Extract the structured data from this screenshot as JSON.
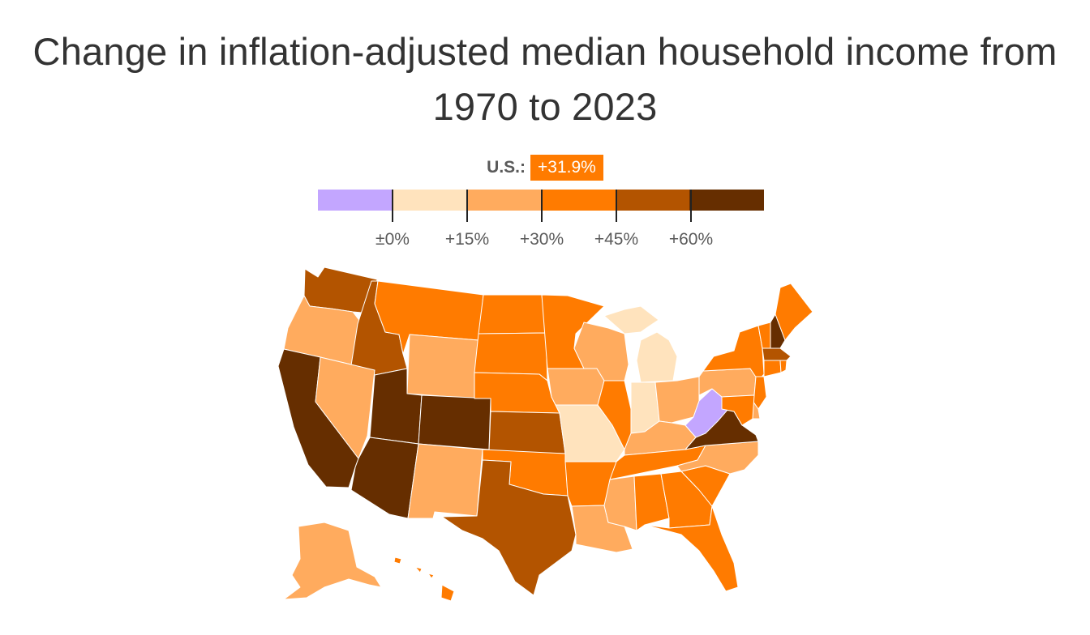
{
  "title": "Change in inflation-adjusted median household income from 1970 to 2023",
  "us": {
    "label": "U.S.:",
    "value": "+31.9%"
  },
  "legend": {
    "colors": [
      "#c3a6ff",
      "#ffe3bd",
      "#ffab5e",
      "#ff7b00",
      "#b35400",
      "#662e00"
    ],
    "ticks": [
      "±0%",
      "+15%",
      "+30%",
      "+45%",
      "+60%"
    ]
  },
  "states": {
    "WA": "#b35400",
    "OR": "#ffab5e",
    "CA": "#662e00",
    "ID": "#b35400",
    "NV": "#ffab5e",
    "MT": "#ff7b00",
    "WY": "#ffab5e",
    "UT": "#662e00",
    "AZ": "#662e00",
    "CO": "#662e00",
    "NM": "#ffab5e",
    "ND": "#ff7b00",
    "SD": "#ff7b00",
    "NE": "#ff7b00",
    "KS": "#b35400",
    "OK": "#ff7b00",
    "TX": "#b35400",
    "MN": "#ff7b00",
    "IA": "#ffab5e",
    "MO": "#ffe3bd",
    "AR": "#ff7b00",
    "LA": "#ffab5e",
    "WI": "#ffab5e",
    "IL": "#ff7b00",
    "MI": "#ffe3bd",
    "IN": "#ffe3bd",
    "OH": "#ffab5e",
    "KY": "#ffab5e",
    "TN": "#ff7b00",
    "MS": "#ffab5e",
    "AL": "#ff7b00",
    "GA": "#ff7b00",
    "FL": "#ff7b00",
    "SC": "#ff7b00",
    "NC": "#ffab5e",
    "VA": "#662e00",
    "WV": "#c3a6ff",
    "PA": "#ffab5e",
    "NY": "#ff7b00",
    "VT": "#ff7b00",
    "NH": "#662e00",
    "ME": "#ff7b00",
    "MA": "#b35400",
    "CT": "#ff7b00",
    "RI": "#ff7b00",
    "NJ": "#ff7b00",
    "DE": "#ffab5e",
    "MD": "#ff7b00",
    "AK": "#ffab5e",
    "HI": "#ff7b00"
  }
}
